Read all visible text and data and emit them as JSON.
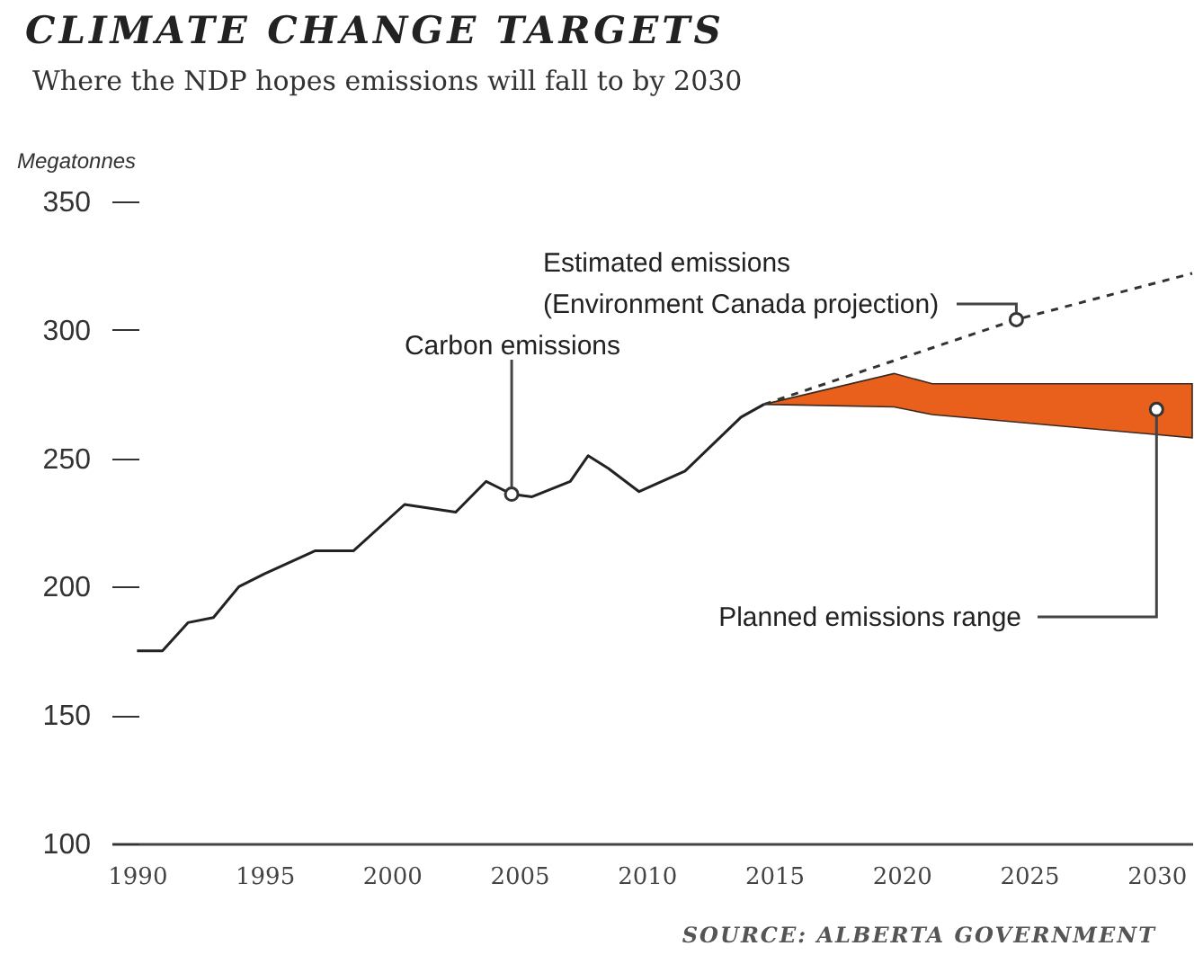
{
  "chart_data": {
    "type": "line",
    "title": "CLIMATE CHANGE TARGETS",
    "subtitle": "Where the NDP hopes emissions will fall to by 2030",
    "ylabel": "Megatonnes",
    "xlim": [
      1989,
      2031.4
    ],
    "ylim": [
      100,
      350
    ],
    "xticks": [
      1990,
      1995,
      2000,
      2005,
      2010,
      2015,
      2020,
      2025,
      2030
    ],
    "yticks": [
      100,
      150,
      200,
      250,
      300,
      350
    ],
    "series": [
      {
        "color": "#222222",
        "line_style": "solid",
        "x": [
          1990,
          1991,
          1992,
          1993,
          1994,
          1995,
          1997,
          1998.5,
          2000.5,
          2002.5,
          2003.7,
          2004.1,
          2004.7,
          2005.5,
          2007,
          2007.7,
          2008.5,
          2009.7,
          2011.5,
          2013.7,
          2014.6
        ],
        "values": [
          175,
          175,
          186,
          188,
          200,
          205,
          214,
          214,
          232,
          229,
          241,
          239,
          236,
          235,
          241,
          251,
          246,
          237,
          245,
          266,
          271
        ]
      },
      {
        "color": "#333333",
        "line_style": "dashed",
        "x": [
          2014.6,
          2024.5,
          2031.4
        ],
        "values": [
          271,
          304,
          322
        ]
      },
      {
        "type": "area",
        "color": "#e8601c",
        "x": [
          2014.6,
          2019.7,
          2021.2,
          2031.4
        ],
        "values": [
          null,
          null,
          null,
          null
        ],
        "lower": [
          271,
          270,
          267,
          258
        ],
        "upper": [
          271,
          283,
          279,
          279
        ]
      }
    ],
    "annotations": [
      {
        "text": "Estimated emissions\n(Environment Canada projection)",
        "x": 2024.5,
        "y": 304
      },
      {
        "text": "Carbon emissions",
        "x": 2004.7,
        "y": 236
      },
      {
        "text": "Planned emissions range",
        "x": 2030,
        "y": 269
      },
      "SOURCE: ALBERTA GOVERNMENT"
    ]
  }
}
